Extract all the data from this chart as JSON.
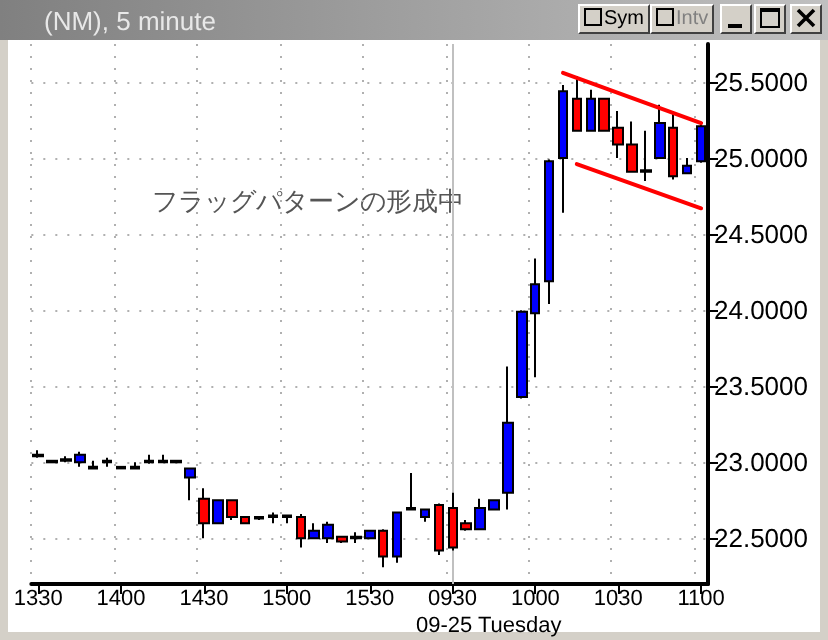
{
  "chart_data": {
    "type": "candlestick",
    "title": "(NM), 5 minute",
    "xlabel": "09-25 Tuesday",
    "annotations": [
      "フラッグパターンの形成中",
      "Sym",
      "Intv"
    ],
    "categories": [
      "1330",
      null,
      null,
      null,
      null,
      null,
      "1400",
      null,
      null,
      null,
      null,
      null,
      "1430",
      null,
      null,
      null,
      null,
      null,
      "1500",
      null,
      null,
      null,
      null,
      null,
      "1530",
      null,
      null,
      null,
      null,
      null,
      "0930",
      null,
      null,
      null,
      null,
      null,
      "1000",
      null,
      null,
      null,
      null,
      null,
      "1030",
      null,
      null,
      null,
      null,
      null,
      "1100"
    ],
    "ylim": [
      22.2,
      25.75
    ],
    "yticks": [
      {
        "value": 22.5,
        "label": "22.5000"
      },
      {
        "value": 23,
        "label": "23.0000"
      },
      {
        "value": 23.5,
        "label": "23.5000"
      },
      {
        "value": 24,
        "label": "24.0000"
      },
      {
        "value": 24.5,
        "label": "24.5000"
      },
      {
        "value": 25,
        "label": "25.0000"
      },
      {
        "value": 25.5,
        "label": "25.5000"
      }
    ],
    "grid": true,
    "marker": "none",
    "ref_lines": [
      {
        "axis": "x",
        "value": "0930",
        "color": "#c0c0c0"
      }
    ],
    "series": [
      {
        "ohlc": [
          [
            23.05,
            23.08,
            23.03,
            23.04
          ],
          [
            23.01,
            23.01,
            23.0,
            23.0
          ],
          [
            23.02,
            23.04,
            23.0,
            23.01
          ],
          [
            23.0,
            23.07,
            22.97,
            23.05
          ],
          [
            22.97,
            23.01,
            22.96,
            22.96
          ],
          [
            23.01,
            23.03,
            22.97,
            23.0
          ],
          [
            22.97,
            22.97,
            22.96,
            22.96
          ],
          [
            22.97,
            23.0,
            22.96,
            22.96
          ],
          [
            23.01,
            23.05,
            22.99,
            23.0
          ],
          [
            23.01,
            23.05,
            23.0,
            23.0
          ],
          [
            23.01,
            23.01,
            23.0,
            23.0
          ],
          [
            22.9,
            22.96,
            22.75,
            22.96
          ],
          [
            22.76,
            22.83,
            22.5,
            22.6
          ],
          [
            22.6,
            22.75,
            22.6,
            22.75
          ],
          [
            22.75,
            22.75,
            22.62,
            22.64
          ],
          [
            22.64,
            22.64,
            22.6,
            22.6
          ],
          [
            22.64,
            22.64,
            22.62,
            22.63
          ],
          [
            22.65,
            22.67,
            22.6,
            22.64
          ],
          [
            22.65,
            22.65,
            22.6,
            22.64
          ],
          [
            22.64,
            22.66,
            22.44,
            22.5
          ],
          [
            22.5,
            22.6,
            22.5,
            22.55
          ],
          [
            22.5,
            22.61,
            22.47,
            22.59
          ],
          [
            22.51,
            22.51,
            22.47,
            22.48
          ],
          [
            22.51,
            22.54,
            22.47,
            22.5
          ],
          [
            22.5,
            22.55,
            22.5,
            22.55
          ],
          [
            22.55,
            22.56,
            22.31,
            22.38
          ],
          [
            22.38,
            22.67,
            22.34,
            22.67
          ],
          [
            22.7,
            22.93,
            22.69,
            22.69
          ],
          [
            22.64,
            22.69,
            22.61,
            22.69
          ],
          [
            22.72,
            22.73,
            22.39,
            22.42
          ],
          [
            22.7,
            22.8,
            22.42,
            22.44
          ],
          [
            22.6,
            22.62,
            22.55,
            22.56
          ],
          [
            22.56,
            22.76,
            22.56,
            22.7
          ],
          [
            22.69,
            22.75,
            22.69,
            22.75
          ],
          [
            22.8,
            23.63,
            22.69,
            23.26
          ],
          [
            23.43,
            24.0,
            23.42,
            23.99
          ],
          [
            23.98,
            24.34,
            23.56,
            24.17
          ],
          [
            24.19,
            24.99,
            24.04,
            24.98
          ],
          [
            25.0,
            25.48,
            24.64,
            25.44
          ],
          [
            25.39,
            25.54,
            25.18,
            25.18
          ],
          [
            25.18,
            25.45,
            25.18,
            25.39
          ],
          [
            25.39,
            25.39,
            25.18,
            25.18
          ],
          [
            25.2,
            25.31,
            25.0,
            25.09
          ],
          [
            25.09,
            25.24,
            24.91,
            24.91
          ],
          [
            24.92,
            25.18,
            24.85,
            24.91
          ],
          [
            25.0,
            25.35,
            25.0,
            25.23
          ],
          [
            25.2,
            25.31,
            24.86,
            24.88
          ],
          [
            24.9,
            25.0,
            24.9,
            24.95
          ],
          [
            24.98,
            25.22,
            24.97,
            25.21
          ]
        ],
        "colors": [
          "#000000",
          "#000000",
          "#000000",
          "#0000ff",
          "#000000",
          "#000000",
          "#000000",
          "#000000",
          "#000000",
          "#000000",
          "#000000",
          "#0000ff",
          "#ff0000",
          "#0000ff",
          "#ff0000",
          "#ff0000",
          "#000000",
          "#000000",
          "#000000",
          "#ff0000",
          "#0000ff",
          "#0000ff",
          "#ff0000",
          "#000000",
          "#0000ff",
          "#ff0000",
          "#0000ff",
          "#000000",
          "#0000ff",
          "#ff0000",
          "#ff0000",
          "#ff0000",
          "#0000ff",
          "#0000ff",
          "#0000ff",
          "#0000ff",
          "#0000ff",
          "#0000ff",
          "#0000ff",
          "#ff0000",
          "#0000ff",
          "#ff0000",
          "#ff0000",
          "#ff0000",
          "#000000",
          "#0000ff",
          "#ff0000",
          "#0000ff",
          "#0000ff"
        ]
      },
      {
        "type": "line",
        "color": "#ff0000",
        "values": [
          null,
          null,
          null,
          null,
          null,
          null,
          null,
          null,
          null,
          null,
          null,
          null,
          null,
          null,
          null,
          null,
          null,
          null,
          null,
          null,
          null,
          null,
          null,
          null,
          null,
          null,
          null,
          null,
          null,
          null,
          null,
          null,
          null,
          null,
          null,
          null,
          null,
          null,
          25.56,
          null,
          null,
          null,
          null,
          null,
          null,
          null,
          null,
          null,
          25.23
        ]
      },
      {
        "type": "line",
        "color": "#ff0000",
        "values": [
          null,
          null,
          null,
          null,
          null,
          null,
          null,
          null,
          null,
          null,
          null,
          null,
          null,
          null,
          null,
          null,
          null,
          null,
          null,
          null,
          null,
          null,
          null,
          null,
          null,
          null,
          null,
          null,
          null,
          null,
          null,
          null,
          null,
          null,
          null,
          null,
          null,
          null,
          null,
          24.96,
          null,
          null,
          null,
          null,
          null,
          null,
          null,
          null,
          24.67
        ]
      }
    ]
  }
}
